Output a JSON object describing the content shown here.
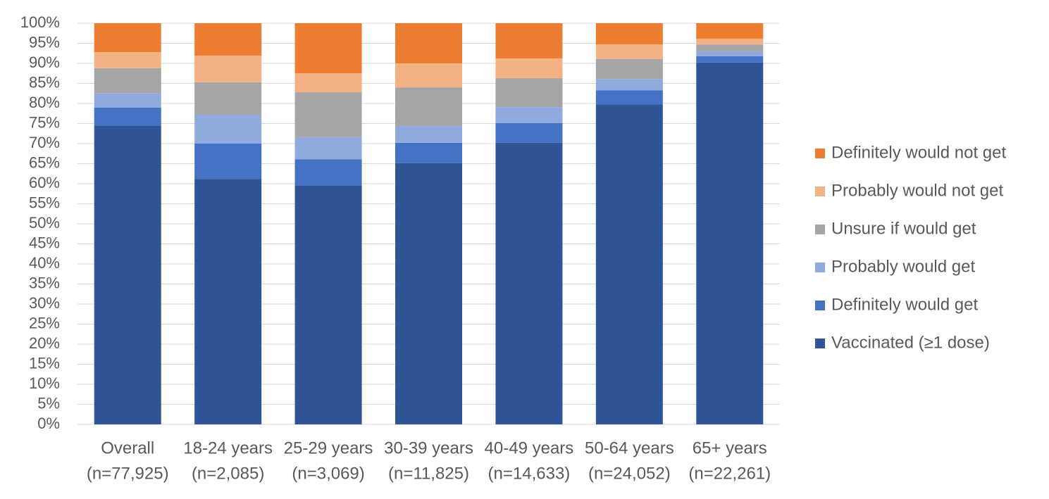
{
  "chart_data": {
    "type": "stacked-bar",
    "categories": [
      [
        "Overall",
        "(n=77,925)"
      ],
      [
        "18-24 years",
        "(n=2,085)"
      ],
      [
        "25-29 years",
        "(n=3,069)"
      ],
      [
        "30-39 years",
        "(n=11,825)"
      ],
      [
        "40-49 years",
        "(n=14,633)"
      ],
      [
        "50-64 years",
        "(n=24,052)"
      ],
      [
        "65+ years",
        "(n=22,261)"
      ]
    ],
    "series": [
      {
        "name": "Vaccinated (≥1 dose)",
        "color": "#2f5597",
        "values": [
          74.5,
          61.2,
          59.6,
          65.1,
          70.2,
          79.8,
          90.2
        ]
      },
      {
        "name": "Definitely would get",
        "color": "#4472c4",
        "values": [
          4.5,
          8.8,
          6.5,
          5.1,
          4.9,
          3.5,
          1.6
        ]
      },
      {
        "name": "Probably would get",
        "color": "#8faadc",
        "values": [
          3.5,
          7.2,
          5.5,
          4.2,
          4.0,
          2.8,
          1.2
        ]
      },
      {
        "name": "Unsure if would get",
        "color": "#a5a5a5",
        "values": [
          6.3,
          8.1,
          11.2,
          9.6,
          7.2,
          5.0,
          1.7
        ]
      },
      {
        "name": "Probably would not get",
        "color": "#f4b183",
        "values": [
          4.0,
          6.6,
          4.7,
          6.0,
          4.9,
          3.6,
          1.4
        ]
      },
      {
        "name": "Definitely would not get",
        "color": "#ed7d31",
        "values": [
          7.2,
          8.1,
          12.5,
          10.0,
          8.8,
          5.3,
          3.9
        ]
      }
    ],
    "ylim": [
      0,
      100
    ],
    "yticks": [
      {
        "value": 0,
        "label": "0%"
      },
      {
        "value": 5,
        "label": "5%"
      },
      {
        "value": 10,
        "label": "10%"
      },
      {
        "value": 15,
        "label": "15%"
      },
      {
        "value": 20,
        "label": "20%"
      },
      {
        "value": 25,
        "label": "25%"
      },
      {
        "value": 30,
        "label": "30%"
      },
      {
        "value": 35,
        "label": "35%"
      },
      {
        "value": 40,
        "label": "40%"
      },
      {
        "value": 45,
        "label": "45%"
      },
      {
        "value": 50,
        "label": "50%"
      },
      {
        "value": 55,
        "label": "55%"
      },
      {
        "value": 60,
        "label": "60%"
      },
      {
        "value": 65,
        "label": "65%"
      },
      {
        "value": 70,
        "label": "70%"
      },
      {
        "value": 75,
        "label": "75%"
      },
      {
        "value": 80,
        "label": "80%"
      },
      {
        "value": 85,
        "label": "85%"
      },
      {
        "value": 90,
        "label": "90%"
      },
      {
        "value": 95,
        "label": "95%"
      },
      {
        "value": 100,
        "label": "100%"
      }
    ],
    "grid": true,
    "legend": "right"
  }
}
